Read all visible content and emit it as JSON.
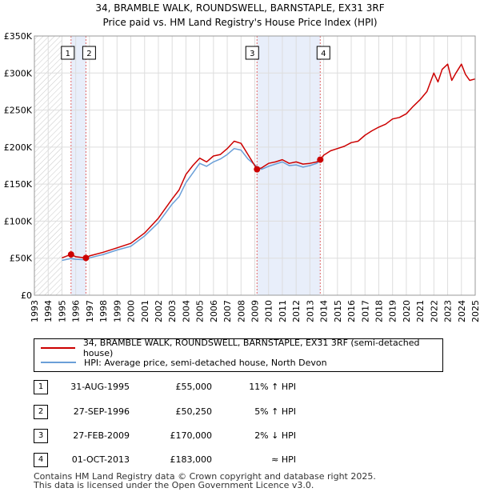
{
  "title_line1": "34, BRAMBLE WALK, ROUNDSWELL, BARNSTAPLE, EX31 3RF",
  "title_line2": "Price paid vs. HM Land Registry's House Price Index (HPI)",
  "colors": {
    "price_line": "#cc0000",
    "hpi_line": "#6a9fd8",
    "shade": "#e8eefa",
    "grid": "#dddddd",
    "vline": "#e06666"
  },
  "chart_data": {
    "type": "line",
    "title": "Price paid vs. HM Land Registry's House Price Index (HPI)",
    "xlabel": "",
    "ylabel": "",
    "xlim": [
      1993,
      2025
    ],
    "ylim": [
      0,
      350000
    ],
    "x_ticks": [
      1993,
      1994,
      1995,
      1996,
      1997,
      1998,
      1999,
      2000,
      2001,
      2002,
      2003,
      2004,
      2005,
      2006,
      2007,
      2008,
      2009,
      2010,
      2011,
      2012,
      2013,
      2014,
      2015,
      2016,
      2017,
      2018,
      2019,
      2020,
      2021,
      2022,
      2023,
      2024,
      2025
    ],
    "y_ticks": [
      0,
      50000,
      100000,
      150000,
      200000,
      250000,
      300000,
      350000
    ],
    "y_tick_labels": [
      "£0",
      "£50K",
      "£100K",
      "£150K",
      "£200K",
      "£250K",
      "£300K",
      "£350K"
    ],
    "hatch_before": 1995.0,
    "shaded_ranges": [
      [
        1995.66,
        1996.74
      ],
      [
        2009.16,
        2013.75
      ]
    ],
    "series": [
      {
        "name": "34, BRAMBLE WALK, ROUNDSWELL, BARNSTAPLE, EX31 3RF (semi-detached house)",
        "x": [
          1995.0,
          1995.66,
          1996.0,
          1996.74,
          1997,
          1998,
          1999,
          2000,
          2001,
          2002,
          2003,
          2003.5,
          2004,
          2004.5,
          2005,
          2005.5,
          2006,
          2006.5,
          2007,
          2007.5,
          2008,
          2008.5,
          2009.16,
          2009.5,
          2010,
          2010.5,
          2011,
          2011.5,
          2012,
          2012.5,
          2013,
          2013.5,
          2013.75,
          2014,
          2014.5,
          2015,
          2015.5,
          2016,
          2016.5,
          2017,
          2017.5,
          2018,
          2018.5,
          2019,
          2019.5,
          2020,
          2020.5,
          2021,
          2021.5,
          2022,
          2022.3,
          2022.6,
          2023,
          2023.3,
          2023.6,
          2024,
          2024.3,
          2024.6,
          2025
        ],
        "values": [
          50500,
          55000,
          52000,
          50250,
          53000,
          58000,
          64000,
          70000,
          84000,
          104000,
          130000,
          142000,
          163000,
          175000,
          185000,
          180000,
          188000,
          190000,
          198000,
          208000,
          205000,
          190000,
          170000,
          172000,
          178000,
          180000,
          183000,
          178000,
          180000,
          177000,
          178000,
          180000,
          183000,
          189000,
          195000,
          198000,
          201000,
          206000,
          208000,
          216000,
          222000,
          227000,
          231000,
          238000,
          240000,
          245000,
          255000,
          264000,
          275000,
          300000,
          288000,
          305000,
          312000,
          290000,
          300000,
          312000,
          298000,
          290000,
          292000
        ]
      },
      {
        "name": "HPI: Average price, semi-detached house, North Devon",
        "x": [
          1995.0,
          1995.66,
          1996.0,
          1996.74,
          1997,
          1998,
          1999,
          2000,
          2001,
          2002,
          2003,
          2003.5,
          2004,
          2004.5,
          2005,
          2005.5,
          2006,
          2006.5,
          2007,
          2007.5,
          2008,
          2008.5,
          2009.16,
          2009.5,
          2010,
          2010.5,
          2011,
          2011.5,
          2012,
          2012.5,
          2013,
          2013.5,
          2013.75
        ],
        "values": [
          47000,
          49500,
          48500,
          47800,
          50500,
          55000,
          61000,
          66000,
          80000,
          98000,
          123000,
          133000,
          152000,
          165000,
          178000,
          174000,
          180000,
          184000,
          190000,
          198000,
          196000,
          184000,
          173500,
          170000,
          174000,
          177000,
          180000,
          175000,
          176000,
          173000,
          175000,
          178000,
          183000
        ]
      }
    ],
    "sales": [
      {
        "label": "1",
        "x": 1995.66,
        "y": 55000
      },
      {
        "label": "2",
        "x": 1996.74,
        "y": 50250
      },
      {
        "label": "3",
        "x": 2009.16,
        "y": 170000
      },
      {
        "label": "4",
        "x": 2013.75,
        "y": 183000
      }
    ]
  },
  "legend": {
    "price_label": "34, BRAMBLE WALK, ROUNDSWELL, BARNSTAPLE, EX31 3RF (semi-detached house)",
    "hpi_label": "HPI: Average price, semi-detached house, North Devon"
  },
  "transactions": [
    {
      "num": "1",
      "date": "31-AUG-1995",
      "price": "£55,000",
      "hpi": "11% ↑ HPI"
    },
    {
      "num": "2",
      "date": "27-SEP-1996",
      "price": "£50,250",
      "hpi": "5% ↑ HPI"
    },
    {
      "num": "3",
      "date": "27-FEB-2009",
      "price": "£170,000",
      "hpi": "2% ↓ HPI"
    },
    {
      "num": "4",
      "date": "01-OCT-2013",
      "price": "£183,000",
      "hpi": "≈ HPI"
    }
  ],
  "footer_line1": "Contains HM Land Registry data © Crown copyright and database right 2025.",
  "footer_line2": "This data is licensed under the Open Government Licence v3.0."
}
